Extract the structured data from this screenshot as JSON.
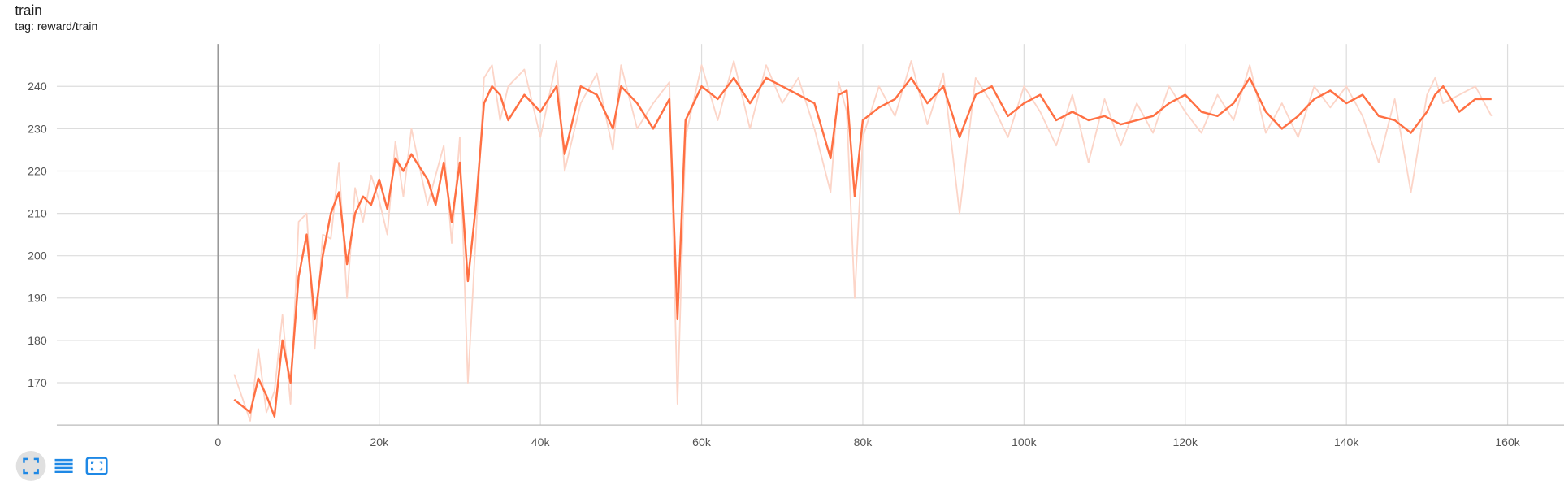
{
  "chart_data": {
    "type": "line",
    "title": "train",
    "subtitle": "tag: reward/train",
    "x": [
      2000,
      4000,
      5000,
      6000,
      7000,
      8000,
      9000,
      10000,
      11000,
      12000,
      13000,
      14000,
      15000,
      16000,
      17000,
      18000,
      19000,
      20000,
      21000,
      22000,
      23000,
      24000,
      26000,
      27000,
      28000,
      29000,
      30000,
      31000,
      32000,
      33000,
      34000,
      35000,
      36000,
      38000,
      40000,
      42000,
      43000,
      45000,
      47000,
      49000,
      50000,
      52000,
      54000,
      56000,
      57000,
      58000,
      60000,
      62000,
      64000,
      66000,
      68000,
      70000,
      72000,
      74000,
      76000,
      77000,
      78000,
      79000,
      80000,
      82000,
      84000,
      86000,
      88000,
      90000,
      92000,
      94000,
      96000,
      98000,
      100000,
      102000,
      104000,
      106000,
      108000,
      110000,
      112000,
      114000,
      116000,
      118000,
      120000,
      122000,
      124000,
      126000,
      128000,
      130000,
      132000,
      134000,
      136000,
      138000,
      140000,
      142000,
      144000,
      146000,
      148000,
      150000,
      151000,
      152000,
      154000,
      156000,
      158000
    ],
    "series": [
      {
        "color": "#fcd5c8",
        "values": [
          172,
          161,
          178,
          163,
          168,
          186,
          165,
          208,
          210,
          178,
          205,
          204,
          222,
          190,
          216,
          208,
          219,
          213,
          205,
          227,
          214,
          230,
          212,
          219,
          226,
          203,
          228,
          170,
          205,
          242,
          245,
          232,
          240,
          244,
          228,
          246,
          220,
          236,
          243,
          225,
          245,
          230,
          236,
          241,
          165,
          228,
          245,
          232,
          246,
          230,
          245,
          236,
          242,
          230,
          215,
          241,
          234,
          190,
          228,
          240,
          233,
          246,
          231,
          243,
          210,
          242,
          236,
          228,
          240,
          234,
          226,
          238,
          222,
          237,
          226,
          236,
          229,
          240,
          234,
          229,
          238,
          232,
          245,
          229,
          236,
          228,
          240,
          235,
          240,
          233,
          222,
          237,
          215,
          238,
          242,
          236,
          238,
          240,
          233
        ]
      },
      {
        "color": "#ff7043",
        "values": [
          166,
          163,
          171,
          167,
          162,
          180,
          170,
          195,
          205,
          185,
          200,
          210,
          215,
          198,
          210,
          214,
          212,
          218,
          211,
          223,
          220,
          224,
          218,
          212,
          222,
          208,
          222,
          194,
          212,
          236,
          240,
          238,
          232,
          238,
          234,
          240,
          224,
          240,
          238,
          230,
          240,
          236,
          230,
          237,
          185,
          232,
          240,
          237,
          242,
          236,
          242,
          240,
          238,
          236,
          223,
          238,
          239,
          214,
          232,
          235,
          237,
          242,
          236,
          240,
          228,
          238,
          240,
          233,
          236,
          238,
          232,
          234,
          232,
          233,
          231,
          232,
          233,
          236,
          238,
          234,
          233,
          236,
          242,
          234,
          230,
          233,
          237,
          239,
          236,
          238,
          233,
          232,
          229,
          234,
          238,
          240,
          234,
          237,
          237
        ]
      }
    ],
    "xlim": [
      -20000,
      167000
    ],
    "ylim": [
      160,
      250
    ],
    "xticks": [
      0,
      {
        "value": 20000,
        "label": "20k"
      },
      {
        "value": 40000,
        "label": "40k"
      },
      {
        "value": 60000,
        "label": "60k"
      },
      {
        "value": 80000,
        "label": "80k"
      },
      {
        "value": 100000,
        "label": "100k"
      },
      {
        "value": 120000,
        "label": "120k"
      },
      {
        "value": 140000,
        "label": "140k"
      },
      {
        "value": 160000,
        "label": "160k"
      }
    ],
    "yticks": [
      170,
      180,
      190,
      200,
      210,
      220,
      230,
      240
    ],
    "grid": true
  }
}
